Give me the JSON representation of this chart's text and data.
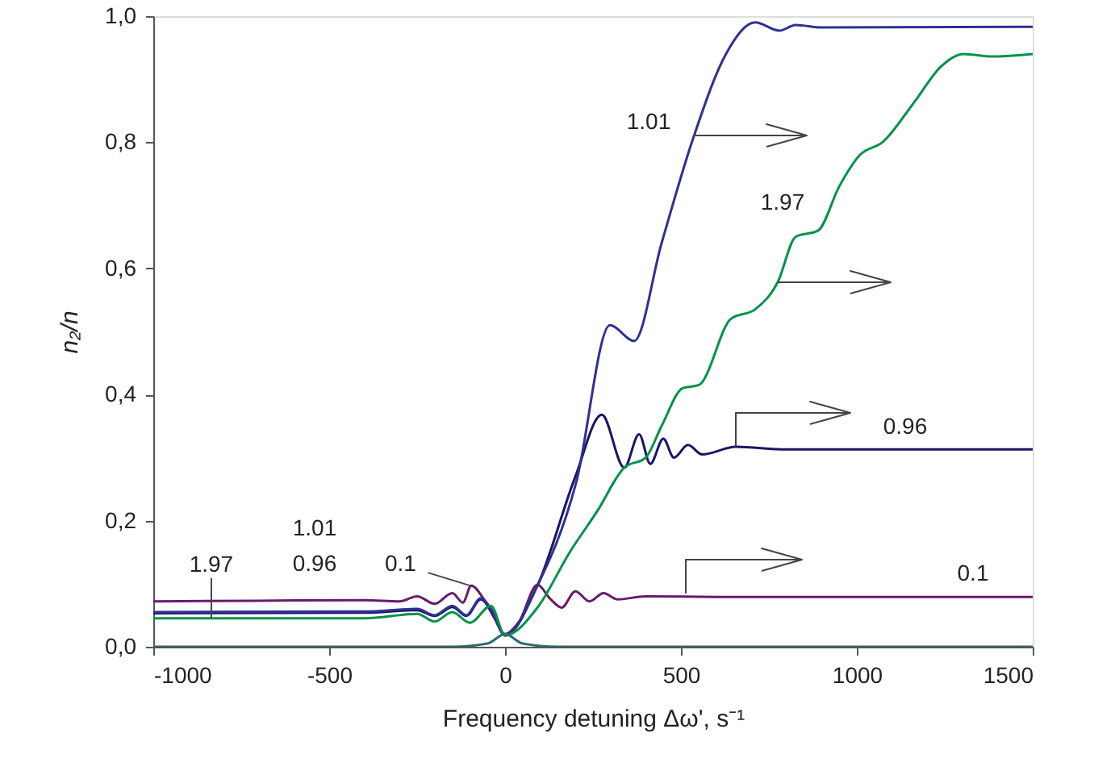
{
  "chart_data": {
    "type": "line",
    "xlabel": "Frequency detuning Δω', s⁻¹",
    "ylabel": "n₂/n",
    "xlim": [
      -1000,
      1500
    ],
    "xticks": [
      -1000,
      -500,
      0,
      500,
      1000,
      1500
    ],
    "ylim": [
      0,
      1.0
    ],
    "yticks": [
      {
        "value": 0,
        "label": "0,0"
      },
      {
        "value": 0.2,
        "label": "0,2"
      },
      {
        "value": 0.4,
        "label": "0,4"
      },
      {
        "value": 0.6,
        "label": "0,6"
      },
      {
        "value": 0.8,
        "label": "0,8"
      },
      {
        "value": 1.0,
        "label": "1,0"
      }
    ],
    "grid": false,
    "marker": "none",
    "line_style": "solid",
    "series": [
      {
        "color": "#6a1b6a",
        "x": [
          -1000,
          -700,
          -400,
          -300,
          -250,
          -200,
          -150,
          -120,
          -96,
          -60,
          -30,
          0,
          40,
          92,
          130,
          161,
          200,
          240,
          280,
          320,
          400,
          600,
          1500
        ],
        "values": [
          0.072,
          0.073,
          0.074,
          0.072,
          0.08,
          0.068,
          0.085,
          0.07,
          0.097,
          0.075,
          0.045,
          0.02,
          0.04,
          0.098,
          0.075,
          0.062,
          0.088,
          0.072,
          0.085,
          0.075,
          0.08,
          0.079,
          0.079
        ]
      },
      {
        "color": "#1b1464",
        "x": [
          -1000,
          -400,
          -250,
          -200,
          -150,
          -110,
          -69,
          -40,
          0,
          92,
          200,
          275,
          339,
          381,
          413,
          450,
          480,
          520,
          560,
          656,
          800,
          1500
        ],
        "values": [
          0.053,
          0.054,
          0.058,
          0.049,
          0.063,
          0.049,
          0.075,
          0.058,
          0.018,
          0.097,
          0.27,
          0.368,
          0.284,
          0.337,
          0.29,
          0.33,
          0.3,
          0.32,
          0.305,
          0.317,
          0.313,
          0.313
        ]
      },
      {
        "color": "#2e3192",
        "x": [
          -1000,
          -400,
          -250,
          -200,
          -150,
          -110,
          -69,
          -40,
          0,
          92,
          202,
          298,
          367,
          445,
          537,
          628,
          711,
          780,
          826,
          900,
          1500
        ],
        "values": [
          0.055,
          0.056,
          0.06,
          0.05,
          0.065,
          0.05,
          0.077,
          0.06,
          0.018,
          0.097,
          0.26,
          0.51,
          0.485,
          0.64,
          0.81,
          0.94,
          0.99,
          0.977,
          0.986,
          0.982,
          0.983
        ]
      },
      {
        "color": "#00934a",
        "x": [
          -1000,
          -400,
          -250,
          -200,
          -150,
          -100,
          -40,
          0,
          92,
          184,
          262,
          339,
          400,
          445,
          505,
          551,
          642,
          711,
          775,
          826,
          890,
          950,
          1009,
          1073,
          1165,
          1239,
          1303,
          1385,
          1500
        ],
        "values": [
          0.045,
          0.045,
          0.052,
          0.04,
          0.055,
          0.038,
          0.065,
          0.018,
          0.062,
          0.15,
          0.215,
          0.284,
          0.3,
          0.35,
          0.41,
          0.415,
          0.52,
          0.535,
          0.578,
          0.65,
          0.66,
          0.73,
          0.78,
          0.8,
          0.865,
          0.92,
          0.94,
          0.936,
          0.94
        ]
      },
      {
        "color": "#2a6e6e",
        "x": [
          -1000,
          -150,
          -50,
          0,
          50,
          150,
          1500
        ],
        "values": [
          0,
          0,
          0.005,
          0.02,
          0.005,
          0,
          0
        ]
      }
    ],
    "annotations": [
      "1.01",
      "1.97",
      "0.96",
      "0.1",
      {
        "text": "1.97",
        "x": -835,
        "y": 0.045
      },
      "1.01",
      "0.96",
      {
        "text": "0.1",
        "x": -100,
        "y": 0.097
      }
    ]
  }
}
